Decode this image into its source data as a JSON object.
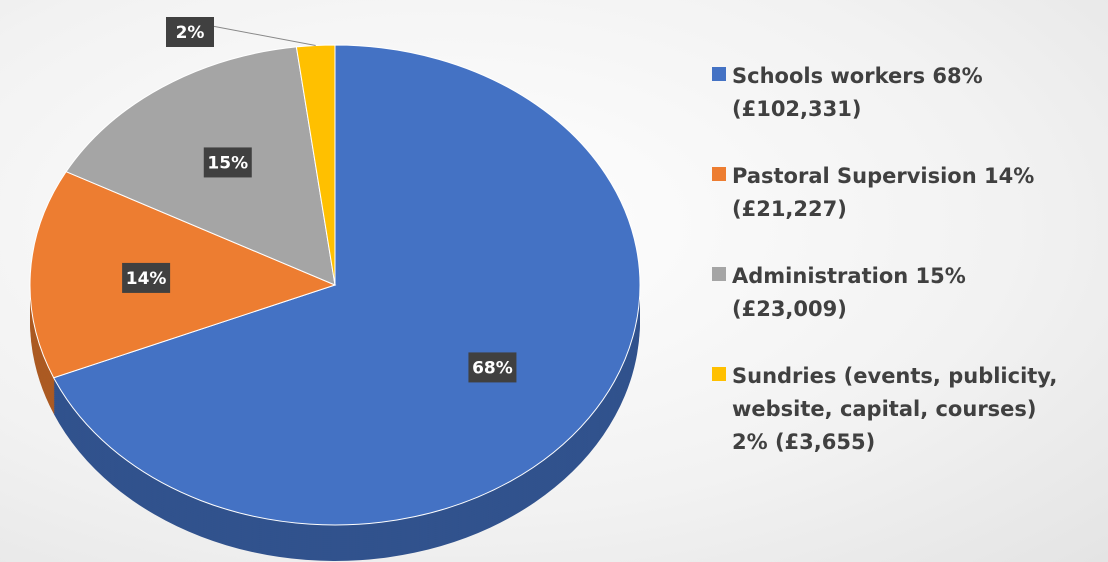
{
  "chart_data": {
    "type": "pie",
    "categories": [
      "Schools workers 68% (£102,331)",
      "Pastoral Supervision 14% (£21,227)",
      "Administration 15% (£23,009)",
      "Sundries (events, publicity, website, capital, courses) 2% (£3,655)"
    ],
    "values": [
      68,
      14,
      15,
      2
    ],
    "value_labels": [
      "68%",
      "14%",
      "15%",
      "2%"
    ],
    "colors": [
      "#4472c4",
      "#ed7d31",
      "#a5a5a5",
      "#ffc000"
    ],
    "legend": "right"
  }
}
